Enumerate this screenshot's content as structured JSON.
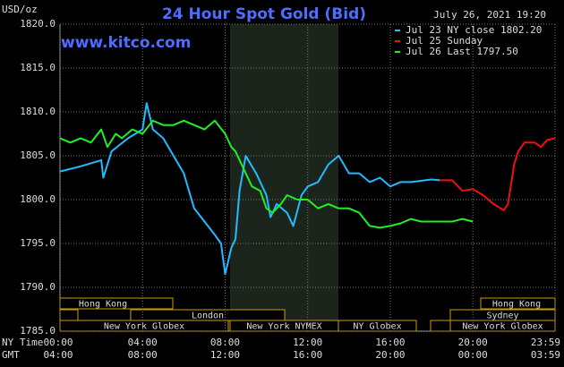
{
  "chart_data": {
    "type": "line",
    "title": "24 Hour Spot Gold (Bid)",
    "subtitle": "July 26, 2021 19:20",
    "watermark": "www.kitco.com",
    "ylabel": "USD/oz",
    "xlabel": "NY Time",
    "xlabel2": "GMT",
    "xlim": [
      0,
      23.983
    ],
    "ylim": [
      1785,
      1820
    ],
    "yticks": [
      {
        "value": 1785,
        "label": "1785.0"
      },
      {
        "value": 1790,
        "label": "1790.0"
      },
      {
        "value": 1795,
        "label": "1795.0"
      },
      {
        "value": 1800,
        "label": "1800.0"
      },
      {
        "value": 1805,
        "label": "1805.0"
      },
      {
        "value": 1810,
        "label": "1810.0"
      },
      {
        "value": 1815,
        "label": "1815.0"
      },
      {
        "value": 1820,
        "label": "1820.0"
      }
    ],
    "xticks": [
      {
        "value": 0,
        "label": "00:00"
      },
      {
        "value": 4,
        "label": "04:00"
      },
      {
        "value": 8,
        "label": "08:00"
      },
      {
        "value": 12,
        "label": "12:00"
      },
      {
        "value": 16,
        "label": "16:00"
      },
      {
        "value": 20,
        "label": "20:00"
      },
      {
        "value": 23.983,
        "label": "23:59"
      }
    ],
    "xtick_labels_gmt": [
      "04:00",
      "08:00",
      "12:00",
      "16:00",
      "20:00",
      "00:00",
      "03:59"
    ],
    "grid": true,
    "sessions": [
      "Hong Kong",
      "London",
      "New York Globex",
      "New York NYMEX",
      "NY Globex",
      "Hong Kong",
      "Sydney",
      "New York Globex"
    ],
    "series": [
      {
        "name": "Jul 23 NY close 1802.20",
        "color": "#22bbff",
        "x": [
          0,
          1,
          2,
          2.1,
          2.5,
          3.3,
          4,
          4.2,
          4.5,
          5,
          5.5,
          6,
          6.5,
          7,
          7.5,
          7.8,
          8,
          8.3,
          8.5,
          8.7,
          9,
          9.5,
          10,
          10.2,
          10.5,
          11,
          11.3,
          11.7,
          12,
          12.5,
          13,
          13.5,
          14,
          14.5,
          15,
          15.5,
          16,
          16.5,
          17,
          18,
          18.4
        ],
        "values": [
          1803.2,
          1803.8,
          1804.5,
          1802.5,
          1805.5,
          1807,
          1808,
          1811,
          1808,
          1807,
          1805,
          1803,
          1799,
          1797.5,
          1796,
          1795,
          1791.5,
          1794.5,
          1795.5,
          1801,
          1805,
          1803,
          1800.5,
          1798,
          1799.5,
          1798.5,
          1797,
          1800.5,
          1801.5,
          1802,
          1804,
          1805,
          1803,
          1803,
          1802,
          1802.5,
          1801.5,
          1802,
          1802,
          1802.3,
          1802.2
        ]
      },
      {
        "name": "Jul 25 Sunday",
        "color": "#ee1111",
        "x": [
          18.4,
          19,
          19.5,
          20,
          20.5,
          21,
          21.5,
          21.7,
          22,
          22.2,
          22.5,
          23,
          23.3,
          23.6,
          23.983
        ],
        "values": [
          1802.2,
          1802.2,
          1801,
          1801.2,
          1800.5,
          1799.5,
          1798.8,
          1799.5,
          1804,
          1805.5,
          1806.5,
          1806.5,
          1806,
          1806.8,
          1807
        ]
      },
      {
        "name": "Jul 26 Last 1797.50",
        "color": "#22ee22",
        "x": [
          0,
          0.5,
          1,
          1.5,
          2,
          2.3,
          2.7,
          3,
          3.5,
          4,
          4.5,
          5,
          5.5,
          6,
          6.5,
          7,
          7.5,
          8,
          8.3,
          8.5,
          9,
          9.3,
          9.7,
          10,
          10.3,
          10.7,
          11,
          11.5,
          12,
          12.5,
          13,
          13.5,
          14,
          14.5,
          15,
          15.5,
          16,
          16.5,
          17,
          17.5,
          18,
          19,
          19.5,
          20
        ],
        "values": [
          1807,
          1806.5,
          1807,
          1806.5,
          1808,
          1806,
          1807.5,
          1807,
          1808,
          1807.5,
          1809,
          1808.5,
          1808.5,
          1809,
          1808.5,
          1808,
          1809,
          1807.5,
          1806,
          1805.5,
          1803,
          1801.5,
          1801,
          1799,
          1798.5,
          1799.5,
          1800.5,
          1800,
          1800,
          1799,
          1799.5,
          1799,
          1799,
          1798.5,
          1797,
          1796.8,
          1797,
          1797.3,
          1797.8,
          1797.5,
          1797.5,
          1797.5,
          1797.8,
          1797.5
        ]
      }
    ]
  }
}
